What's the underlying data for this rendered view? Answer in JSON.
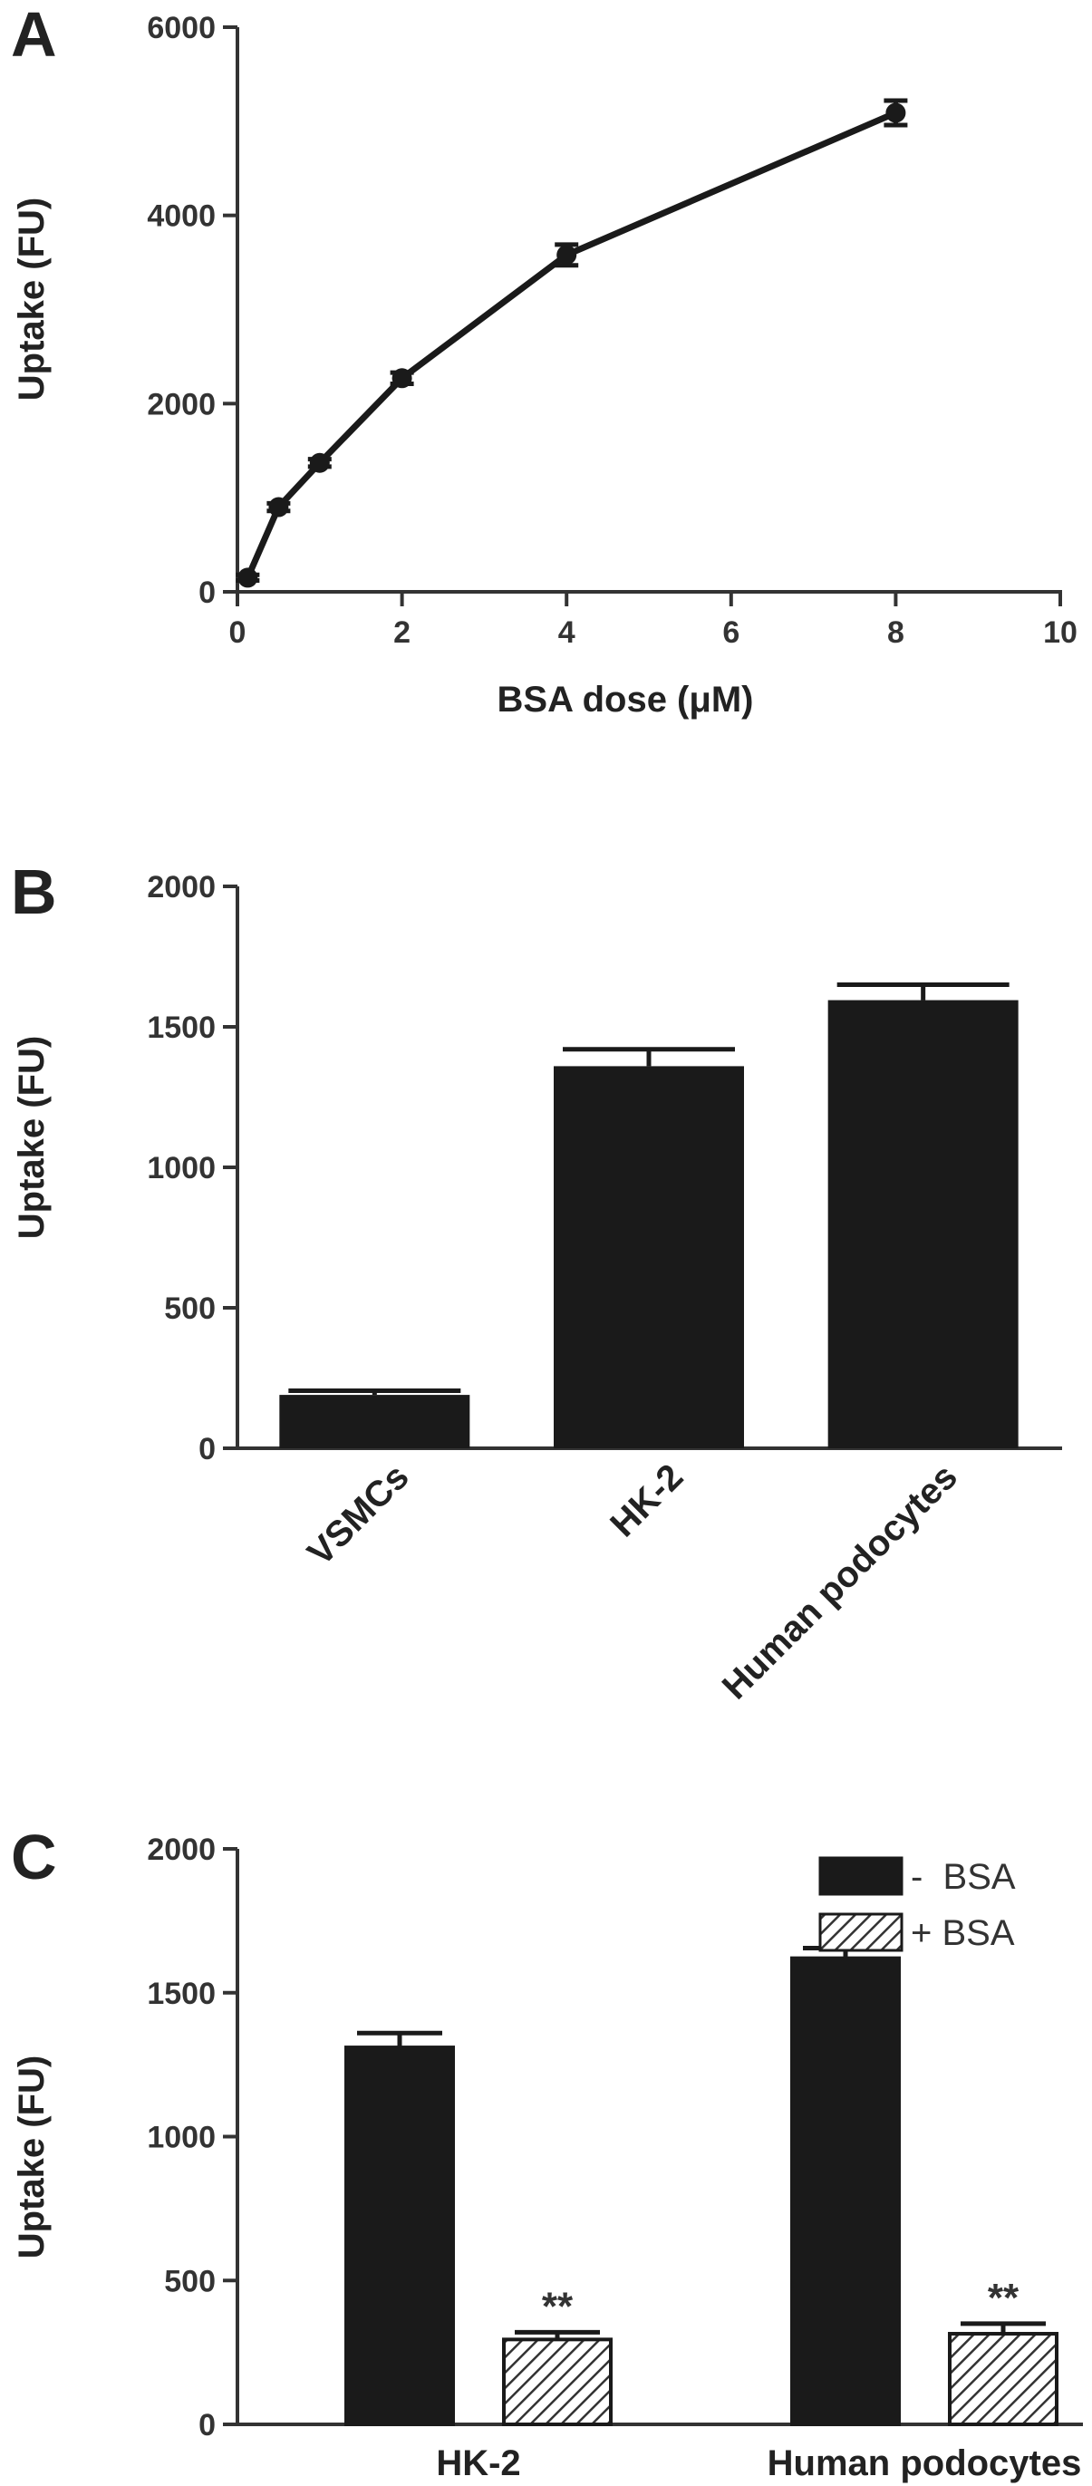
{
  "panels": {
    "a": {
      "letter": "A"
    },
    "b": {
      "letter": "B"
    },
    "c": {
      "letter": "C"
    }
  },
  "colors": {
    "ink": "#1a1a1a",
    "axis": "#333333",
    "hatch": "#333333",
    "background": "#ffffff"
  },
  "chart_data": [
    {
      "type": "line",
      "panel": "A",
      "title": "",
      "xlabel": "BSA dose (μM)",
      "ylabel": "Uptake (FU)",
      "xlim": [
        0,
        10
      ],
      "ylim": [
        0,
        6000
      ],
      "xticks": [
        0,
        2,
        4,
        6,
        8,
        10
      ],
      "yticks": [
        0,
        2000,
        4000,
        6000
      ],
      "grid": false,
      "series": [
        {
          "x": [
            0.125,
            0.5,
            1,
            2,
            4,
            8
          ],
          "y": [
            150,
            900,
            1370,
            2270,
            3580,
            5090
          ],
          "error": [
            30,
            40,
            40,
            60,
            110,
            130
          ]
        }
      ]
    },
    {
      "type": "bar",
      "panel": "B",
      "title": "",
      "xlabel": "",
      "ylabel": "Uptake (FU)",
      "ylim": [
        0,
        2000
      ],
      "yticks": [
        0,
        500,
        1000,
        1500,
        2000
      ],
      "grid": false,
      "categories": [
        "VSMCs",
        "HK-2",
        "Human podocytes"
      ],
      "values": [
        190,
        1360,
        1595
      ],
      "error": [
        15,
        60,
        55
      ]
    },
    {
      "type": "bar",
      "panel": "C",
      "title": "",
      "xlabel": "",
      "ylabel": "Uptake (FU)",
      "ylim": [
        0,
        2000
      ],
      "yticks": [
        0,
        500,
        1000,
        1500,
        2000
      ],
      "grid": false,
      "legend_position": "top-right",
      "categories": [
        "HK-2",
        "Human podocytes"
      ],
      "series": [
        {
          "name": "-  BSA",
          "fill": "solid",
          "values": [
            1310,
            1620
          ],
          "error": [
            50,
            35
          ]
        },
        {
          "name": "+ BSA",
          "fill": "hatched",
          "values": [
            295,
            315
          ],
          "error": [
            25,
            35
          ]
        }
      ],
      "annotations": [
        "**",
        "**"
      ]
    }
  ]
}
